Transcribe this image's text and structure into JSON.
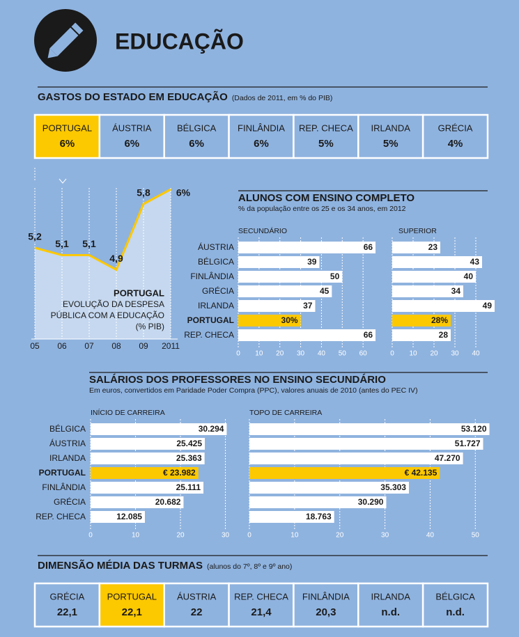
{
  "title": "EDUCAÇÃO",
  "tables": [
    {
      "title": "GASTOS DO ESTADO EM EDUCAÇÃO",
      "subtitle": "(Dados de 2011, em % do PIB)",
      "cells": [
        [
          "PORTUGAL",
          "6%"
        ],
        [
          "ÁUSTRIA",
          "6%"
        ],
        [
          "BÉLGICA",
          "6%"
        ],
        [
          "FINLÂNDIA",
          "6%"
        ],
        [
          "REP. CHECA",
          "5%"
        ],
        [
          "IRLANDA",
          "5%"
        ],
        [
          "GRÉCIA",
          "4%"
        ]
      ],
      "colors": [
        "#fcc800",
        "#8fb3df",
        "#8fb3df",
        "#8fb3df",
        "#8fb3df",
        "#8fb3df",
        "#8fb3df"
      ]
    },
    {
      "title": "DIMENSÃO MÉDIA DAS TURMAS",
      "subtitle": "(alunos do 7º, 8º e 9º ano)",
      "cells": [
        [
          "GRÉCIA",
          "22,1"
        ],
        [
          "PORTUGAL",
          "22,1"
        ],
        [
          "ÁUSTRIA",
          "22"
        ],
        [
          "REP. CHECA",
          "21,4"
        ],
        [
          "FINLÂNDIA",
          "20,3"
        ],
        [
          "IRLANDA",
          "n.d."
        ],
        [
          "BÉLGICA",
          "n.d."
        ]
      ],
      "colors": [
        "#8fb3df",
        "#fcc800",
        "#8fb3df",
        "#8fb3df",
        "#8fb3df",
        "#8fb3df",
        "#8fb3df"
      ]
    }
  ],
  "chart_data": [
    {
      "type": "line",
      "categories": [
        "05",
        "06",
        "07",
        "08",
        "09",
        "2011"
      ],
      "values": [
        5.2,
        5.1,
        5.1,
        4.9,
        5.8,
        6
      ],
      "value_labels": [
        "5,2",
        "5,1",
        "5,1",
        "4,9",
        "5,8",
        "6%"
      ],
      "color": "#fcc800",
      "ylim": [
        4,
        6
      ],
      "annotation": [
        "PORTUGAL",
        "EVOLUÇÃO DA DESPESA",
        "PÚBLICA COM A EDUCAÇÃO",
        "(% PIB)"
      ]
    },
    {
      "type": "hbar",
      "title": "ALUNOS COM ENSINO COMPLETO",
      "subtitle": "% da população entre os 25 e os 34 anos, em 2012",
      "categories": [
        "ÁUSTRIA",
        "BÉLGICA",
        "FINLÂNDIA",
        "GRÉCIA",
        "IRLANDA",
        "PORTUGAL",
        "REP. CHECA"
      ],
      "series": [
        {
          "name": "SECUNDÁRIO",
          "values": [
            66,
            39,
            50,
            45,
            37,
            30,
            66
          ],
          "value_labels": [
            "66",
            "39",
            "50",
            "45",
            "37",
            "30%",
            "66"
          ],
          "colors": [
            "#ffffff",
            "#ffffff",
            "#ffffff",
            "#ffffff",
            "#ffffff",
            "#fcc800",
            "#ffffff"
          ],
          "xlim": [
            0,
            70
          ],
          "xticks": [
            0,
            10,
            20,
            30,
            40,
            50,
            60
          ]
        },
        {
          "name": "SUPERIOR",
          "values": [
            23,
            43,
            40,
            34,
            49,
            28,
            28
          ],
          "value_labels": [
            "23",
            "43",
            "40",
            "34",
            "49",
            "28%",
            "28"
          ],
          "colors": [
            "#ffffff",
            "#ffffff",
            "#ffffff",
            "#ffffff",
            "#ffffff",
            "#fcc800",
            "#ffffff"
          ],
          "xlim": [
            0,
            45
          ],
          "xticks": [
            0,
            10,
            20,
            30,
            40
          ]
        }
      ]
    },
    {
      "type": "hbar",
      "title": "SALÁRIOS DOS PROFESSORES NO ENSINO SECUNDÁRIO",
      "subtitle": "Em euros, convertidos em Paridade Poder Compra (PPC), valores anuais de 2010 (antes do PEC IV)",
      "categories": [
        "BÉLGICA",
        "ÁUSTRIA",
        "IRLANDA",
        "PORTUGAL",
        "FINLÂNDIA",
        "GRÉCIA",
        "REP. CHECA"
      ],
      "series": [
        {
          "name": "INÍCIO DE CARREIRA",
          "values": [
            30.294,
            25.425,
            25.363,
            23.982,
            25.111,
            20.682,
            12.085
          ],
          "value_labels": [
            "30.294",
            "25.425",
            "25.363",
            "€ 23.982",
            "25.111",
            "20.682",
            "12.085"
          ],
          "colors": [
            "#ffffff",
            "#ffffff",
            "#ffffff",
            "#fcc800",
            "#ffffff",
            "#ffffff",
            "#ffffff"
          ],
          "xlim": [
            0,
            31
          ],
          "xticks": [
            0,
            10,
            20,
            30
          ]
        },
        {
          "name": "TOPO DE CARREIRA",
          "values": [
            53.12,
            51.727,
            47.27,
            42.135,
            35.303,
            30.29,
            18.763
          ],
          "value_labels": [
            "53.120",
            "51.727",
            "47.270",
            "€ 42.135",
            "35.303",
            "30.290",
            "18.763"
          ],
          "colors": [
            "#ffffff",
            "#ffffff",
            "#ffffff",
            "#fcc800",
            "#ffffff",
            "#ffffff",
            "#ffffff"
          ],
          "xlim": [
            0,
            53.5
          ],
          "xticks": [
            0,
            10,
            20,
            30,
            40,
            50
          ]
        }
      ]
    }
  ]
}
